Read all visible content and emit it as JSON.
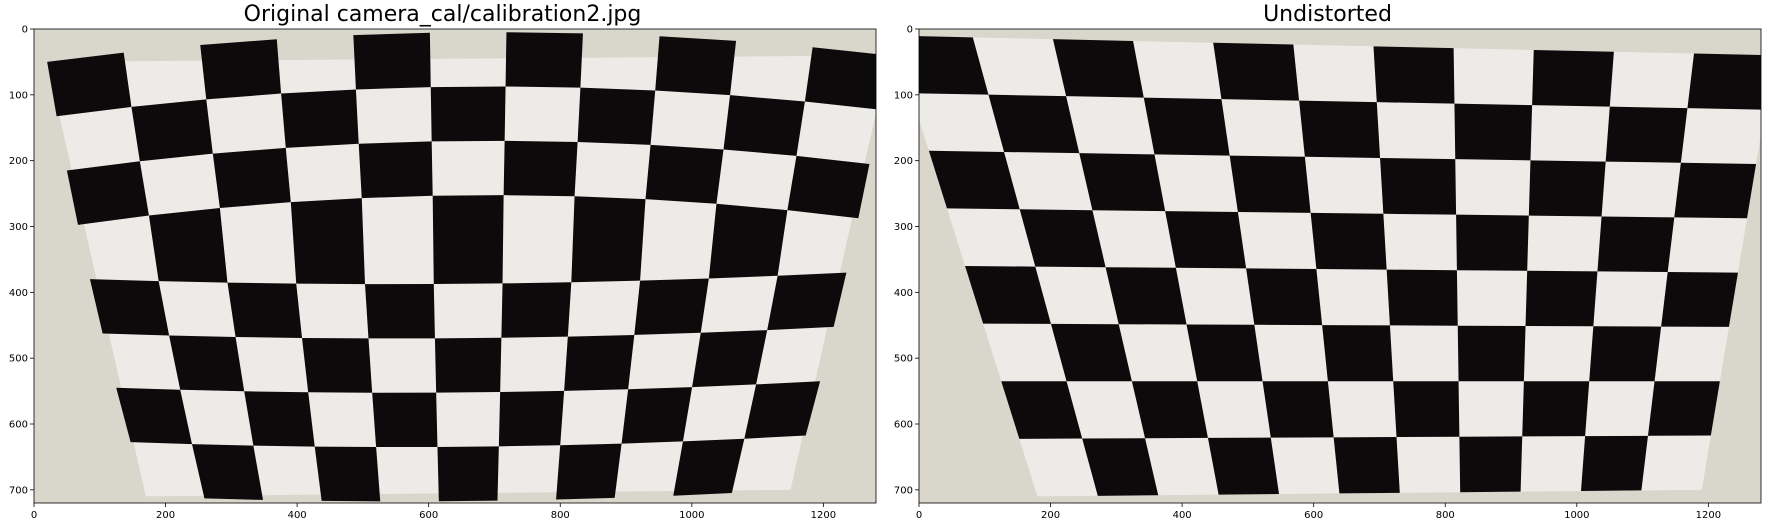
{
  "panels": [
    {
      "title": "Original camera_cal/calibration2.jpg",
      "distortion": 1,
      "x_ticks": [
        0,
        200,
        400,
        600,
        800,
        1000,
        1200
      ],
      "y_ticks": [
        0,
        100,
        200,
        300,
        400,
        500,
        600,
        700
      ],
      "x_range": [
        0,
        1280
      ],
      "y_range": [
        0,
        720
      ]
    },
    {
      "title": "Undistorted",
      "distortion": 0,
      "x_ticks": [
        0,
        200,
        400,
        600,
        800,
        1000,
        1200
      ],
      "y_ticks": [
        0,
        100,
        200,
        300,
        400,
        500,
        600,
        700
      ],
      "x_range": [
        0,
        1280
      ],
      "y_range": [
        0,
        720
      ]
    }
  ],
  "colors": {
    "wall": "#d9d6cc",
    "paper": "#ecebe7",
    "square": "#0d0a0b"
  }
}
